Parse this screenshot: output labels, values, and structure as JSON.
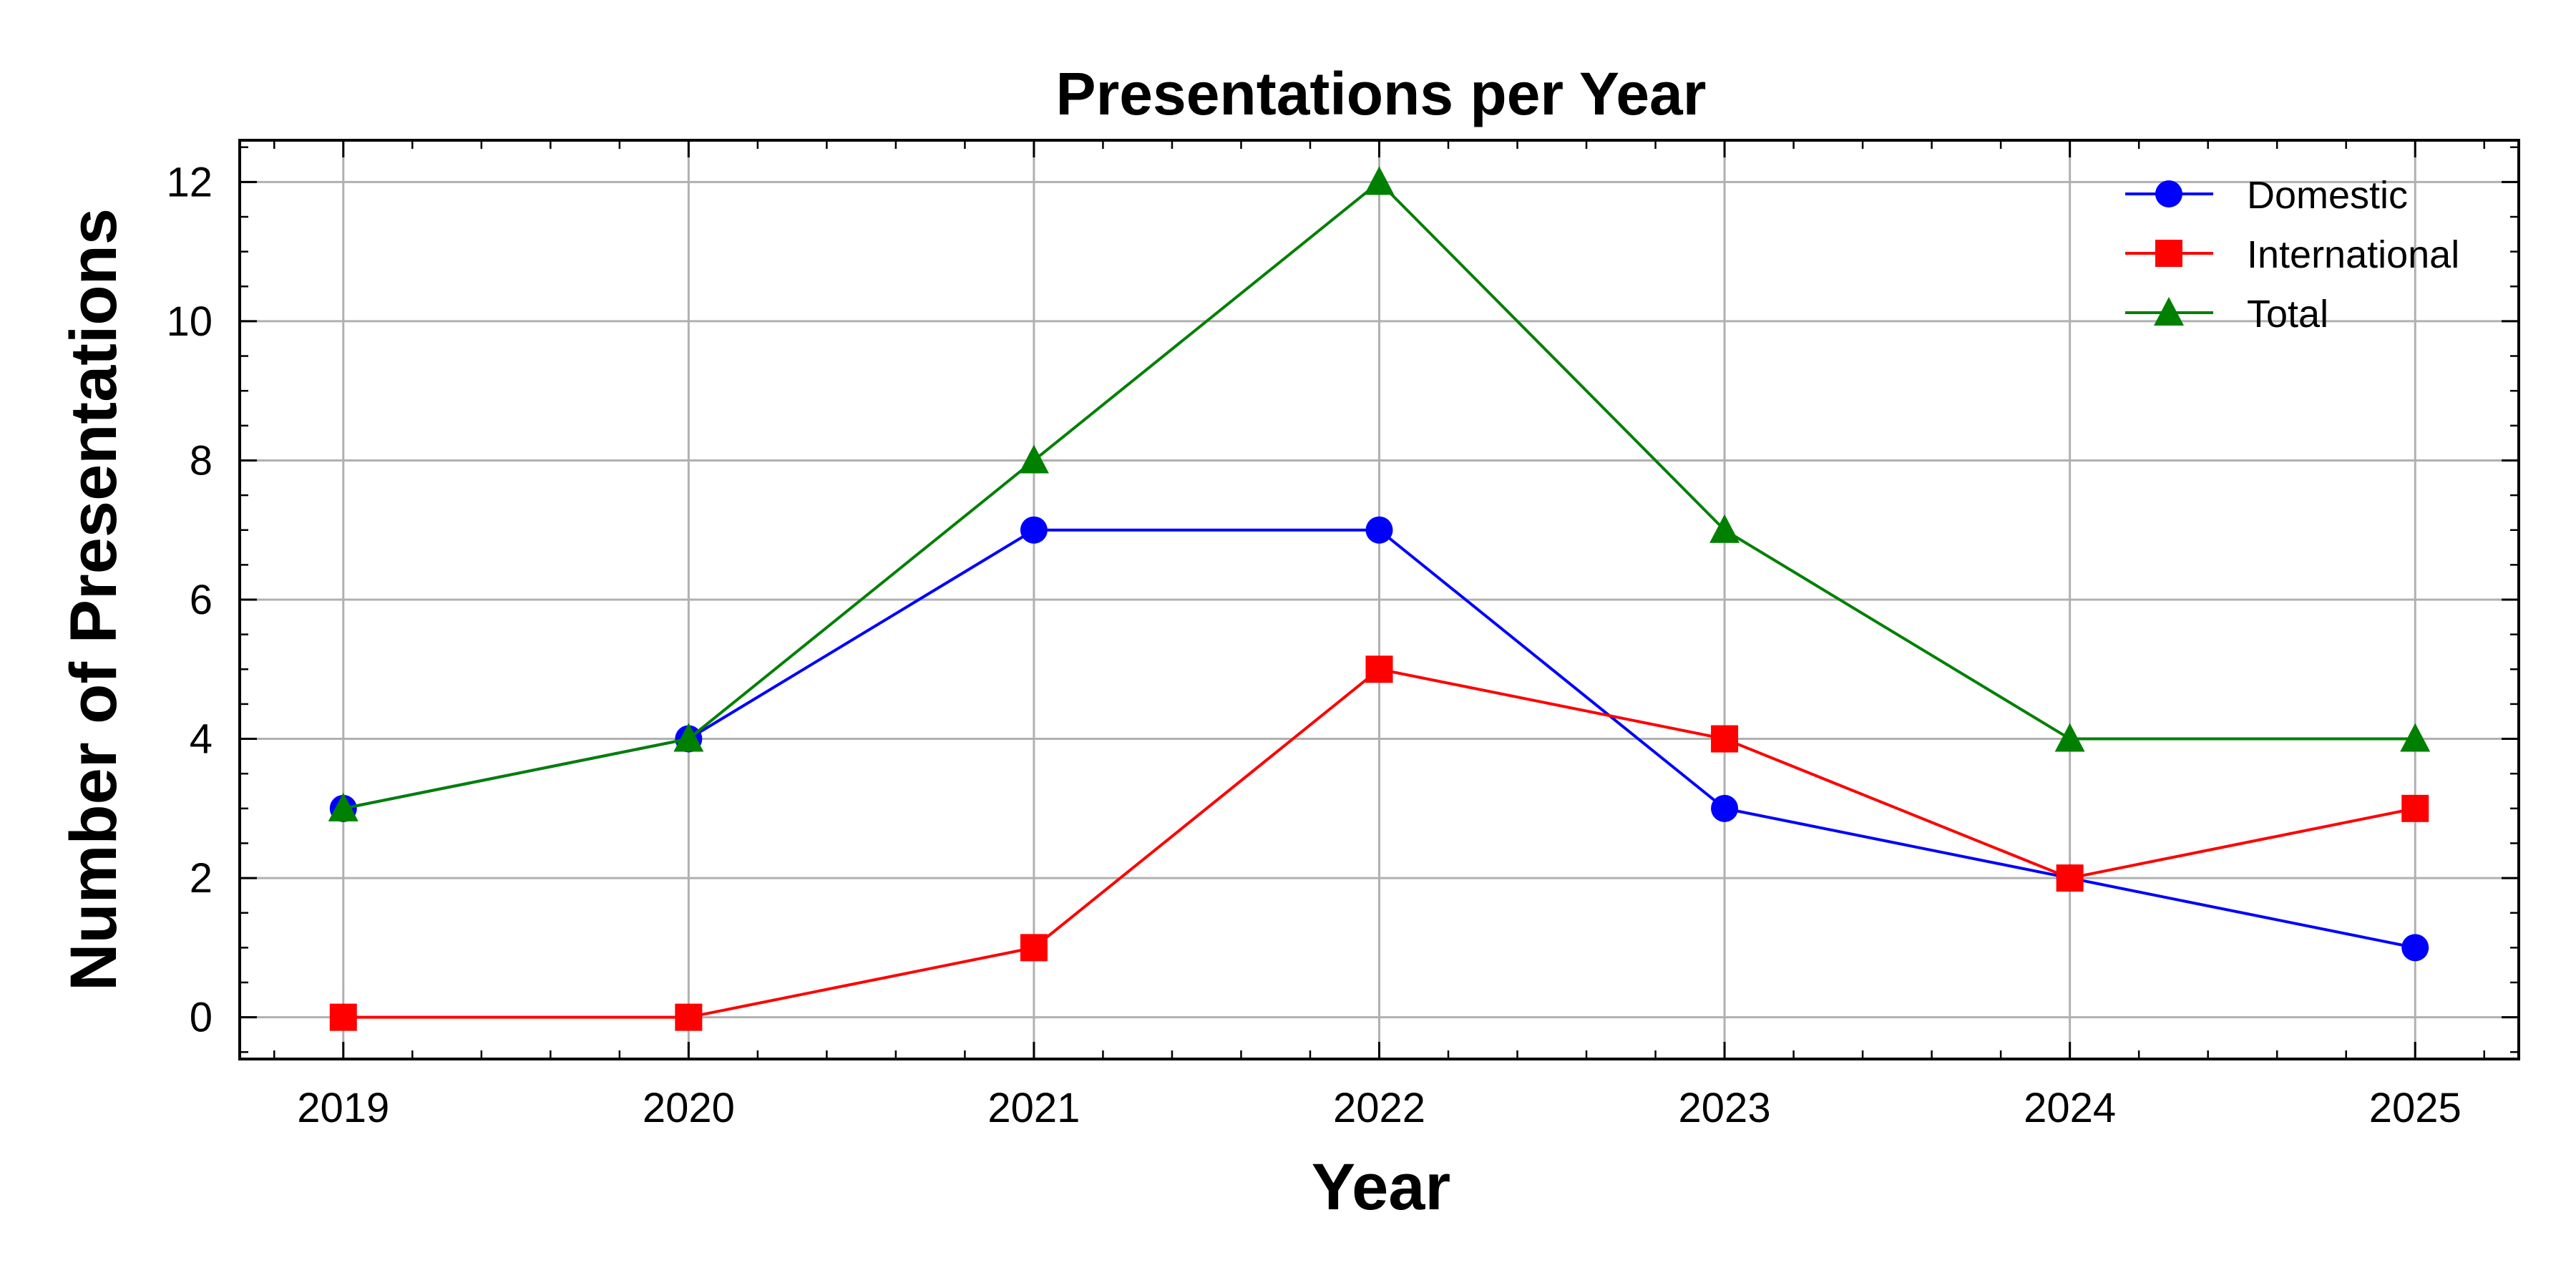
{
  "chart_data": {
    "type": "line",
    "title": "Presentations per Year",
    "xlabel": "Year",
    "ylabel": "Number of Presentations",
    "x": [
      2019,
      2020,
      2021,
      2022,
      2023,
      2024,
      2025
    ],
    "x_tick_labels": [
      "2019",
      "2020",
      "2021",
      "2022",
      "2023",
      "2024",
      "2025"
    ],
    "y_ticks": [
      0,
      2,
      4,
      6,
      8,
      10,
      12
    ],
    "y_tick_labels": [
      "0",
      "2",
      "4",
      "6",
      "8",
      "10",
      "12"
    ],
    "xlim": [
      2018.7,
      2025.3
    ],
    "ylim": [
      -0.6,
      12.6
    ],
    "grid": true,
    "legend_placement": "top-right",
    "series": [
      {
        "name": "Domestic",
        "values": [
          3,
          4,
          7,
          7,
          3,
          2,
          1
        ],
        "color": "#0000ff",
        "marker": "circle"
      },
      {
        "name": "International",
        "values": [
          0,
          0,
          1,
          5,
          4,
          2,
          3
        ],
        "color": "#ff0000",
        "marker": "square"
      },
      {
        "name": "Total",
        "values": [
          3,
          4,
          8,
          12,
          7,
          4,
          4
        ],
        "color": "#008000",
        "marker": "triangle"
      }
    ]
  }
}
